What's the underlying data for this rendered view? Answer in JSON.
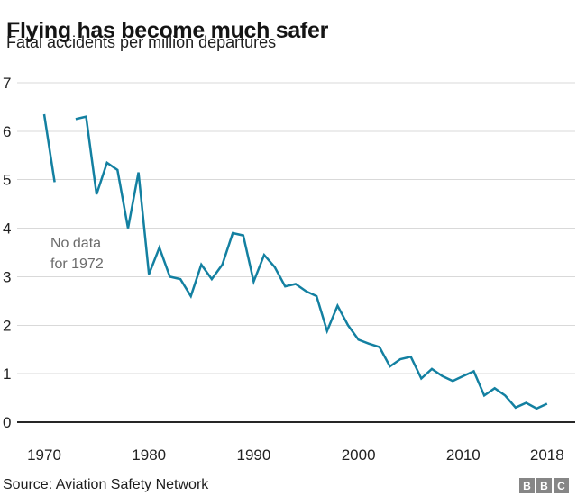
{
  "header": {
    "title": "Flying has become much safer",
    "subtitle": "Fatal accidents per million departures"
  },
  "annotation": {
    "line1": "No data",
    "line2": "for 1972"
  },
  "footer": {
    "source": "Source: Aviation Safety Network",
    "logo": [
      "B",
      "B",
      "C"
    ]
  },
  "colors": {
    "line": "#1380A1",
    "grid": "#d9d9d9",
    "axis": "#262626",
    "tick_label": "#222222",
    "annotation_text": "#6b6b6b",
    "divider": "#808080",
    "logo_block": "#868686"
  },
  "chart_data": {
    "type": "line",
    "title": "Flying has become much safer",
    "subtitle": "Fatal accidents per million departures",
    "xlabel": "",
    "ylabel": "Fatal accidents per million departures",
    "xlim": [
      1970,
      2018
    ],
    "ylim": [
      0,
      7
    ],
    "grid": true,
    "legend": "none",
    "line_color": "#1380A1",
    "x_ticks": [
      1970,
      1980,
      1990,
      2000,
      2010,
      2018
    ],
    "y_ticks": [
      0,
      1,
      2,
      3,
      4,
      5,
      6,
      7
    ],
    "gap_years": [
      1972
    ],
    "annotations": [
      {
        "text": "No data for 1972",
        "near_year": 1972
      }
    ],
    "x": [
      1970,
      1971,
      1972,
      1973,
      1974,
      1975,
      1976,
      1977,
      1978,
      1979,
      1980,
      1981,
      1982,
      1983,
      1984,
      1985,
      1986,
      1987,
      1988,
      1989,
      1990,
      1991,
      1992,
      1993,
      1994,
      1995,
      1996,
      1997,
      1998,
      1999,
      2000,
      2001,
      2002,
      2003,
      2004,
      2005,
      2006,
      2007,
      2008,
      2009,
      2010,
      2011,
      2012,
      2013,
      2014,
      2015,
      2016,
      2017,
      2018
    ],
    "series": [
      {
        "name": "Fatal accidents per million departures",
        "values": [
          6.35,
          4.95,
          null,
          6.25,
          6.3,
          4.7,
          5.35,
          5.2,
          4.0,
          5.15,
          3.05,
          3.6,
          3.0,
          2.95,
          2.6,
          3.25,
          2.95,
          3.25,
          3.9,
          3.85,
          2.9,
          3.45,
          3.2,
          2.8,
          2.85,
          2.7,
          2.6,
          1.88,
          2.4,
          2.0,
          1.7,
          1.62,
          1.55,
          1.15,
          1.3,
          1.35,
          0.9,
          1.1,
          0.95,
          0.85,
          0.95,
          1.05,
          0.55,
          0.7,
          0.55,
          0.3,
          0.4,
          0.28,
          0.38
        ]
      }
    ]
  }
}
